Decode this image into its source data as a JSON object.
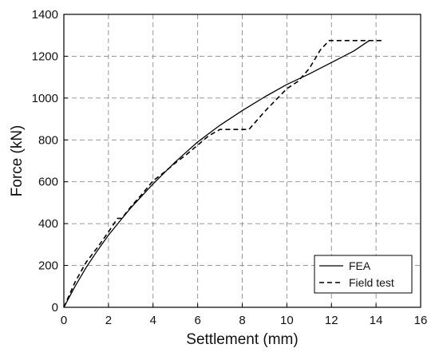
{
  "chart_data": {
    "type": "line",
    "xlabel": "Settlement (mm)",
    "ylabel": "Force (kN)",
    "xlim": [
      0,
      16
    ],
    "ylim": [
      0,
      1400
    ],
    "xticks": [
      0,
      2,
      4,
      6,
      8,
      10,
      12,
      14,
      16
    ],
    "yticks": [
      0,
      200,
      400,
      600,
      800,
      1000,
      1200,
      1400
    ],
    "grid": true,
    "legend_position": "bottom-right",
    "series": [
      {
        "name": "FEA",
        "style": "solid",
        "color": "#000000",
        "x": [
          0,
          0.5,
          1,
          1.5,
          2,
          2.5,
          3,
          4,
          5,
          6,
          7,
          8,
          9,
          10,
          11,
          12,
          13,
          13.7
        ],
        "y": [
          0,
          100,
          190,
          270,
          345,
          410,
          475,
          590,
          695,
          790,
          870,
          940,
          1005,
          1065,
          1115,
          1170,
          1225,
          1275
        ]
      },
      {
        "name": "Field test",
        "style": "dashed",
        "color": "#000000",
        "x": [
          0,
          0.5,
          1,
          1.5,
          2,
          2.4,
          2.6,
          3,
          3.5,
          4,
          4.5,
          5,
          5.5,
          6,
          6.5,
          7,
          7.2,
          8,
          8.3,
          9,
          9.5,
          10,
          10.5,
          11,
          11.5,
          11.9,
          12.2,
          13,
          14.3
        ],
        "y": [
          0,
          120,
          215,
          285,
          360,
          425,
          425,
          480,
          540,
          605,
          645,
          690,
          730,
          775,
          820,
          850,
          850,
          850,
          850,
          935,
          990,
          1045,
          1080,
          1140,
          1230,
          1275,
          1275,
          1275,
          1275
        ]
      }
    ]
  }
}
